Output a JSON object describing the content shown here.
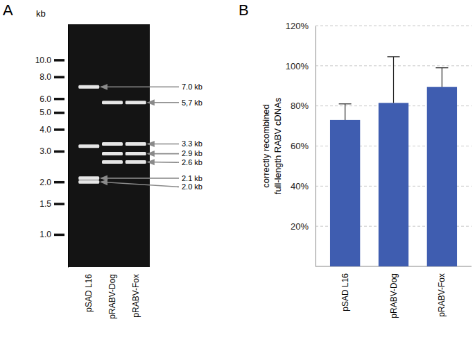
{
  "chart_data": [
    {
      "type": "gel",
      "panel_label": "A",
      "y_label": "kb",
      "log": "y",
      "categories": [
        "pSAD L16",
        "pRABV-Dog",
        "pRABV-Fox"
      ],
      "bands": [
        [
          7.0,
          3.2,
          2.1,
          2.0
        ],
        [
          5.7,
          3.3,
          2.9,
          2.6
        ],
        [
          5.7,
          3.3,
          2.9,
          2.6
        ]
      ],
      "annotations": [
        {
          "value": 7.0,
          "label": "7.0 kb"
        },
        {
          "value": 5.7,
          "label": "5,7 kb"
        },
        {
          "value": 3.3,
          "label": "3.3 kb"
        },
        {
          "value": 2.9,
          "label": "2.9 kb"
        },
        {
          "value": 2.6,
          "label": "2.6 kb"
        },
        {
          "value": 2.1,
          "label": "2.1 kb"
        },
        {
          "value": 2.0,
          "label": "2.0 kb"
        }
      ],
      "ylim": [
        0.65,
        16
      ],
      "yticks": [
        {
          "value": 1,
          "label": "1.0"
        },
        {
          "value": 1.5,
          "label": "1.5"
        },
        {
          "value": 2,
          "label": "2.0"
        },
        {
          "value": 3,
          "label": "3.0"
        },
        {
          "value": 4,
          "label": "4.0"
        },
        {
          "value": 5,
          "label": "5.0"
        },
        {
          "value": 6,
          "label": "6.0"
        },
        {
          "value": 8,
          "label": "8.0"
        },
        {
          "value": 10,
          "label": "10.0"
        }
      ]
    },
    {
      "type": "bar",
      "panel_label": "B",
      "y_label": [
        "correctly recombined",
        "full-length RABV cDNAs"
      ],
      "categories": [
        "pSAD L16",
        "pRABV-Dog",
        "pRABV-Fox"
      ],
      "values": [
        73,
        81.5,
        89.5
      ],
      "errors": [
        8,
        23,
        9.5
      ],
      "color": "#3f5db0",
      "ylim": [
        0,
        120
      ],
      "yticks": [
        {
          "value": 20,
          "label": "20%"
        },
        {
          "value": 40,
          "label": "40%"
        },
        {
          "value": 60,
          "label": "60%"
        },
        {
          "value": 80,
          "label": "80%"
        },
        {
          "value": 100,
          "label": "100%"
        },
        {
          "value": 120,
          "label": "120%"
        }
      ],
      "grid": true
    }
  ]
}
